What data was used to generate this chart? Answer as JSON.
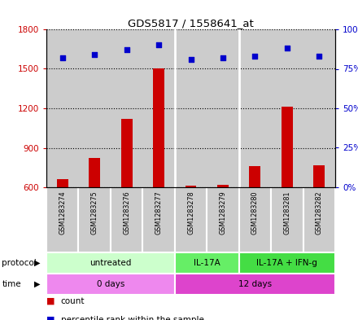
{
  "title": "GDS5817 / 1558641_at",
  "samples": [
    "GSM1283274",
    "GSM1283275",
    "GSM1283276",
    "GSM1283277",
    "GSM1283278",
    "GSM1283279",
    "GSM1283280",
    "GSM1283281",
    "GSM1283282"
  ],
  "counts": [
    660,
    820,
    1120,
    1500,
    615,
    620,
    760,
    1210,
    770
  ],
  "percentiles": [
    82,
    84,
    87,
    90,
    81,
    82,
    83,
    88,
    83
  ],
  "ylim_left": [
    600,
    1800
  ],
  "ylim_right": [
    0,
    100
  ],
  "yticks_left": [
    600,
    900,
    1200,
    1500,
    1800
  ],
  "yticks_right": [
    0,
    25,
    50,
    75,
    100
  ],
  "bar_color": "#cc0000",
  "dot_color": "#0000cc",
  "protocol_groups": [
    {
      "label": "untreated",
      "start": 0,
      "end": 4,
      "color": "#ccffcc"
    },
    {
      "label": "IL-17A",
      "start": 4,
      "end": 6,
      "color": "#55dd55"
    },
    {
      "label": "IL-17A + IFN-g",
      "start": 6,
      "end": 9,
      "color": "#33cc33"
    }
  ],
  "time_groups": [
    {
      "label": "0 days",
      "start": 0,
      "end": 4,
      "color": "#ee88ee"
    },
    {
      "label": "12 days",
      "start": 4,
      "end": 9,
      "color": "#dd44dd"
    }
  ],
  "protocol_label": "protocol",
  "time_label": "time",
  "legend_count": "count",
  "legend_percentile": "percentile rank within the sample",
  "background_color": "#ffffff",
  "sample_bg": "#cccccc",
  "separator_color": "#ffffff",
  "bar_width": 0.35
}
